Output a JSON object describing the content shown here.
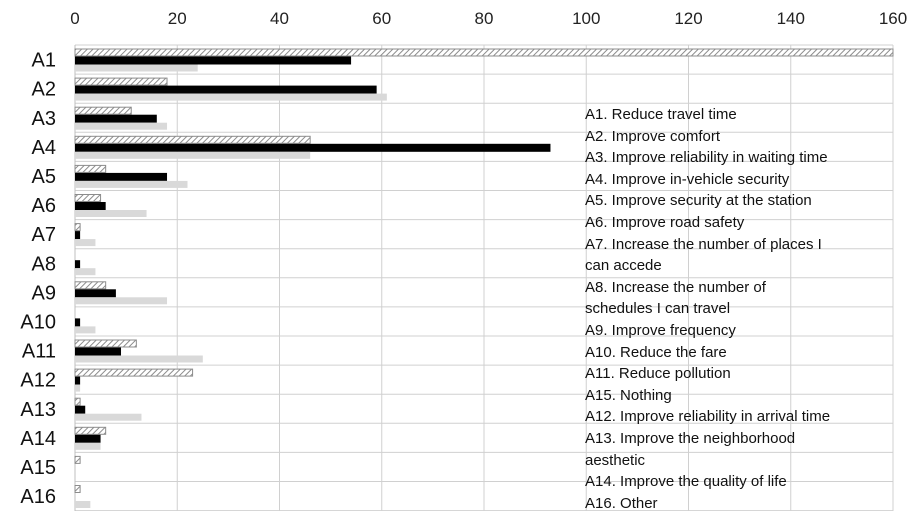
{
  "chart_data": {
    "type": "bar",
    "orientation": "horizontal",
    "xlim": [
      0,
      160
    ],
    "x_ticks": [
      "0",
      "20",
      "40",
      "60",
      "80",
      "100",
      "120",
      "140",
      "160"
    ],
    "x_axis_position": "top",
    "grid": true,
    "categories": [
      "A1",
      "A2",
      "A3",
      "A4",
      "A5",
      "A6",
      "A7",
      "A8",
      "A9",
      "A10",
      "A11",
      "A12",
      "A13",
      "A14",
      "A15",
      "A16"
    ],
    "series": [
      {
        "pattern": "hatched",
        "color": "#9a9a9a",
        "values": [
          160,
          18,
          11,
          46,
          6,
          5,
          1,
          0,
          6,
          0,
          12,
          23,
          1,
          6,
          1,
          1
        ]
      },
      {
        "pattern": "solid",
        "color": "#000000",
        "values": [
          54,
          59,
          16,
          93,
          18,
          6,
          1,
          1,
          8,
          1,
          9,
          1,
          2,
          5,
          0,
          0
        ]
      },
      {
        "pattern": "solid",
        "color": "#d9d9d9",
        "values": [
          24,
          61,
          18,
          46,
          22,
          14,
          4,
          4,
          18,
          4,
          25,
          1,
          13,
          5,
          0,
          3
        ]
      }
    ],
    "annotations": [
      "A1. Reduce travel time",
      "A2. Improve comfort",
      "A3. Improve reliability in waiting time",
      "A4. Improve in-vehicle security",
      "A5. Improve security at the station",
      "A6. Improve road safety",
      "A7. Increase the number of places I",
      "can accede",
      "A8. Increase the number of",
      "schedules  I can travel",
      "A9. Improve frequency",
      "A10. Reduce the fare",
      "A11. Reduce pollution",
      "A15. Nothing",
      "A12. Improve reliability in arrival time",
      "A13. Improve the neighborhood",
      "aesthetic",
      "A14. Improve the quality of life",
      "A16. Other"
    ]
  }
}
